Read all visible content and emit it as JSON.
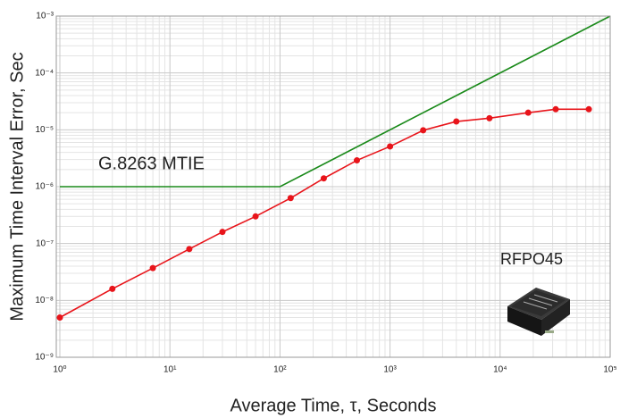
{
  "chart_data": {
    "type": "line",
    "x_label": "Average Time, τ, Seconds",
    "y_label": "Maximum Time Interval Error, Sec",
    "xscale": "log",
    "yscale": "log",
    "grid": true,
    "xlim": [
      1,
      100000
    ],
    "ylim": [
      1e-09,
      0.001
    ],
    "xticks": [
      {
        "value": 1,
        "label": "10⁰"
      },
      {
        "value": 10,
        "label": "10¹"
      },
      {
        "value": 100,
        "label": "10²"
      },
      {
        "value": 1000,
        "label": "10³"
      },
      {
        "value": 10000,
        "label": "10⁴"
      },
      {
        "value": 100000,
        "label": "10⁵"
      }
    ],
    "yticks": [
      {
        "value": 1e-09,
        "label": "10⁻⁹"
      },
      {
        "value": 1e-08,
        "label": "10⁻⁸"
      },
      {
        "value": 1e-07,
        "label": "10⁻⁷"
      },
      {
        "value": 1e-06,
        "label": "10⁻⁶"
      },
      {
        "value": 1e-05,
        "label": "10⁻⁵"
      },
      {
        "value": 0.0001,
        "label": "10⁻⁴"
      },
      {
        "value": 0.001,
        "label": "10⁻³"
      }
    ],
    "series": [
      {
        "name": "G.8263 MTIE",
        "color": "#1a8a1a",
        "markers": false,
        "x": [
          1,
          100,
          100000
        ],
        "values": [
          1e-06,
          1e-06,
          0.001
        ]
      },
      {
        "name": "RFPO45",
        "color": "#e8141a",
        "markers": true,
        "x": [
          1,
          3,
          7,
          15,
          30,
          60,
          125,
          250,
          500,
          1000,
          2000,
          4000,
          8000,
          18000,
          32000,
          64000
        ],
        "values": [
          5e-09,
          1.6e-08,
          3.7e-08,
          8e-08,
          1.6e-07,
          3e-07,
          6.3e-07,
          1.4e-06,
          2.9e-06,
          5.1e-06,
          9.8e-06,
          1.4e-05,
          1.6e-05,
          2e-05,
          2.3e-05,
          2.3e-05
        ]
      }
    ]
  }
}
